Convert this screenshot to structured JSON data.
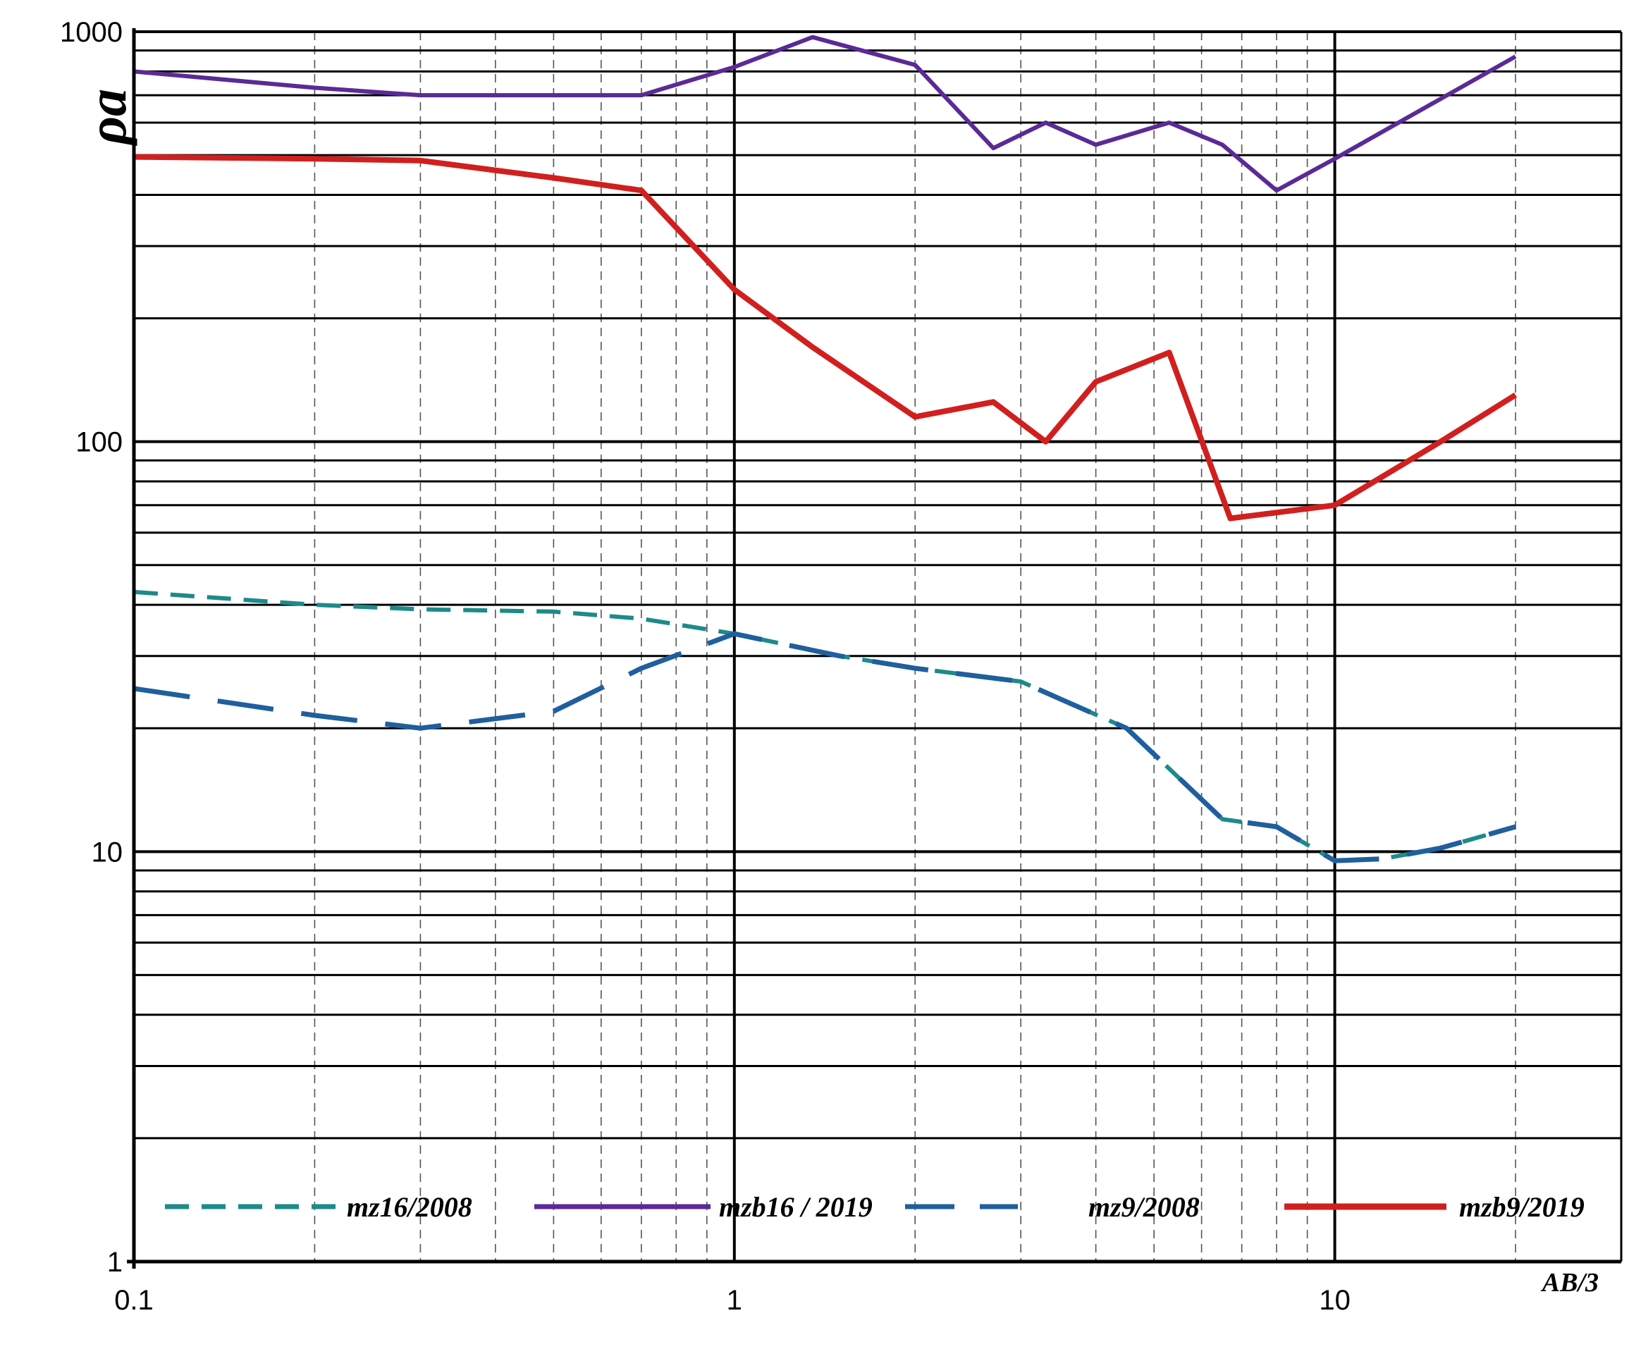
{
  "chart_data": {
    "type": "line",
    "xscale": "log",
    "yscale": "log",
    "xlim": [
      0.1,
      30
    ],
    "ylim": [
      1,
      1000
    ],
    "xlabel": "AB/3",
    "ylabel": "ρa",
    "x_ticks": [
      "0.1",
      "1",
      "10"
    ],
    "y_ticks": [
      "1000",
      "100",
      "10",
      "1"
    ],
    "grid": true,
    "legend_position": "bottom",
    "series": [
      {
        "name": "mz16/2008",
        "color": "#1e8a8a",
        "style": "dashed",
        "x": [
          0.1,
          0.2,
          0.3,
          0.5,
          0.7,
          1.0,
          1.5,
          2.0,
          3.0,
          4.5,
          6.5,
          8.0,
          10.0,
          12.0,
          15.0,
          20.0
        ],
        "y": [
          43,
          40,
          39,
          38.5,
          37,
          34,
          30,
          28,
          26,
          20,
          12,
          11.5,
          9.5,
          9.6,
          10.2,
          11.5
        ]
      },
      {
        "name": "mzb16 / 2019",
        "color": "#5b2a96",
        "style": "solid",
        "x": [
          0.1,
          0.2,
          0.3,
          0.5,
          0.7,
          1.0,
          1.35,
          2.0,
          2.7,
          3.3,
          4.0,
          5.3,
          6.5,
          8.0,
          10.0,
          20.0
        ],
        "y": [
          800,
          730,
          700,
          700,
          700,
          820,
          970,
          830,
          520,
          600,
          530,
          600,
          530,
          410,
          490,
          870
        ]
      },
      {
        "name": "mz9/2008",
        "color": "#1f5f9e",
        "style": "long-dashed",
        "x": [
          0.1,
          0.2,
          0.3,
          0.5,
          0.7,
          1.0,
          1.5,
          2.0,
          3.0,
          4.5,
          6.5,
          8.0,
          10.0,
          12.0,
          15.0,
          20.0
        ],
        "y": [
          25,
          21.5,
          20,
          22,
          28,
          34,
          30,
          28,
          26,
          20,
          12,
          11.5,
          9.5,
          9.6,
          10.2,
          11.5
        ]
      },
      {
        "name": "mzb9/2019",
        "color": "#d11f1f",
        "style": "solid",
        "x": [
          0.1,
          0.2,
          0.3,
          0.5,
          0.7,
          1.0,
          1.35,
          2.0,
          2.7,
          3.3,
          4.0,
          5.3,
          6.7,
          10.0,
          15.0,
          20.0
        ],
        "y": [
          495,
          490,
          485,
          440,
          410,
          235,
          170,
          115,
          125,
          100,
          140,
          165,
          65,
          70,
          100,
          130
        ]
      }
    ]
  }
}
